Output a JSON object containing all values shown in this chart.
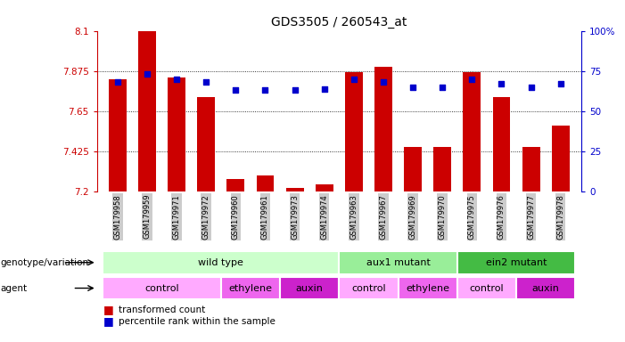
{
  "title": "GDS3505 / 260543_at",
  "samples": [
    "GSM179958",
    "GSM179959",
    "GSM179971",
    "GSM179972",
    "GSM179960",
    "GSM179961",
    "GSM179973",
    "GSM179974",
    "GSM179963",
    "GSM179967",
    "GSM179969",
    "GSM179970",
    "GSM179975",
    "GSM179976",
    "GSM179977",
    "GSM179978"
  ],
  "bar_values": [
    7.83,
    8.1,
    7.84,
    7.73,
    7.27,
    7.29,
    7.22,
    7.24,
    7.87,
    7.9,
    7.45,
    7.45,
    7.87,
    7.73,
    7.45,
    7.57
  ],
  "percentile_values": [
    68,
    73,
    70,
    68,
    63,
    63,
    63,
    64,
    70,
    68,
    65,
    65,
    70,
    67,
    65,
    67
  ],
  "ylim_left": [
    7.2,
    8.1
  ],
  "yticks_left": [
    7.2,
    7.425,
    7.65,
    7.875,
    8.1
  ],
  "ytick_labels_left": [
    "7.2",
    "7.425",
    "7.65",
    "7.875",
    "8.1"
  ],
  "ylim_right": [
    0,
    100
  ],
  "yticks_right": [
    0,
    25,
    50,
    75,
    100
  ],
  "ytick_labels_right": [
    "0",
    "25",
    "50",
    "75",
    "100%"
  ],
  "bar_color": "#cc0000",
  "dot_color": "#0000cc",
  "bar_width": 0.6,
  "genotype_groups": [
    {
      "label": "wild type",
      "start": 0,
      "end": 8,
      "color": "#ccffcc"
    },
    {
      "label": "aux1 mutant",
      "start": 8,
      "end": 12,
      "color": "#99ee99"
    },
    {
      "label": "ein2 mutant",
      "start": 12,
      "end": 16,
      "color": "#44bb44"
    }
  ],
  "agent_groups": [
    {
      "label": "control",
      "start": 0,
      "end": 4,
      "color": "#ffaaff"
    },
    {
      "label": "ethylene",
      "start": 4,
      "end": 6,
      "color": "#ee66ee"
    },
    {
      "label": "auxin",
      "start": 6,
      "end": 8,
      "color": "#cc22cc"
    },
    {
      "label": "control",
      "start": 8,
      "end": 10,
      "color": "#ffaaff"
    },
    {
      "label": "ethylene",
      "start": 10,
      "end": 12,
      "color": "#ee66ee"
    },
    {
      "label": "control",
      "start": 12,
      "end": 14,
      "color": "#ffaaff"
    },
    {
      "label": "auxin",
      "start": 14,
      "end": 16,
      "color": "#cc22cc"
    }
  ],
  "left_axis_color": "#cc0000",
  "right_axis_color": "#0000cc",
  "genotype_label": "genotype/variation",
  "agent_label": "agent",
  "legend_bar": "transformed count",
  "legend_dot": "percentile rank within the sample",
  "background_color": "#ffffff",
  "tick_bg_color": "#cccccc"
}
